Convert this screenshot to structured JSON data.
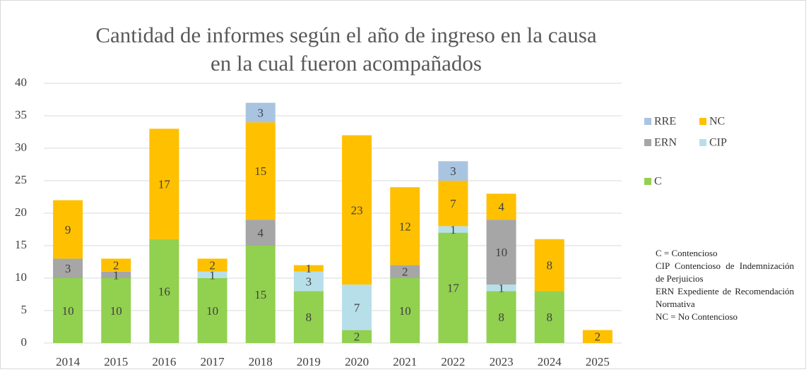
{
  "chart_data": {
    "type": "stacked_bar",
    "title": "Cantidad de informes según el año de ingreso en la causa en la cual fueron acompañados",
    "categories": [
      "2014",
      "2015",
      "2016",
      "2017",
      "2018",
      "2019",
      "2020",
      "2021",
      "2022",
      "2023",
      "2024",
      "2025"
    ],
    "series": [
      {
        "name": "C",
        "color": "#92d050",
        "values": [
          10,
          10,
          16,
          10,
          15,
          8,
          2,
          10,
          17,
          8,
          8,
          null
        ]
      },
      {
        "name": "CIP",
        "color": "#b7dfea",
        "values": [
          null,
          null,
          null,
          1,
          null,
          3,
          7,
          null,
          1,
          1,
          null,
          null
        ]
      },
      {
        "name": "ERN",
        "color": "#a6a6a6",
        "values": [
          3,
          1,
          null,
          null,
          4,
          null,
          null,
          2,
          null,
          10,
          null,
          null
        ]
      },
      {
        "name": "NC",
        "color": "#ffc000",
        "values": [
          9,
          2,
          17,
          2,
          15,
          1,
          23,
          12,
          7,
          4,
          8,
          2
        ]
      },
      {
        "name": "RRE",
        "color": "#a9c4e1",
        "values": [
          null,
          null,
          null,
          null,
          3,
          null,
          null,
          null,
          3,
          null,
          null,
          null
        ]
      }
    ],
    "ylim": [
      0,
      40
    ],
    "yticks": [
      0,
      5,
      10,
      15,
      20,
      25,
      30,
      35,
      40
    ],
    "grid": true,
    "legend": "right",
    "annotations": [
      "C = Contencioso",
      "CIP Contencioso de Indemnización de Perjuicios",
      "ERN Expediente de Recomendación Normativa",
      "NC = No Contencioso"
    ]
  }
}
